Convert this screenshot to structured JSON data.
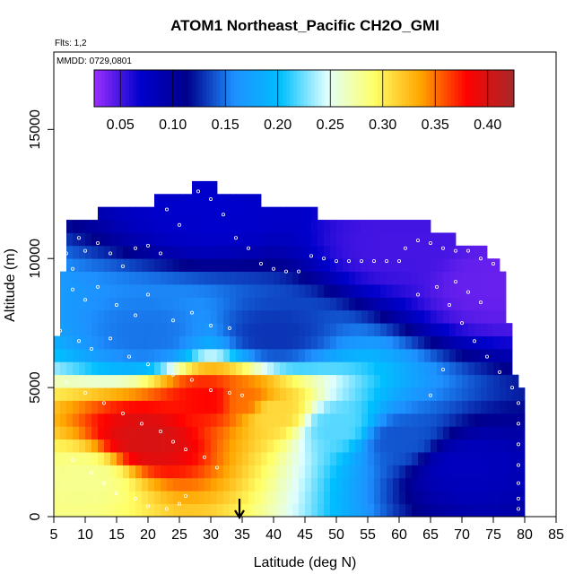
{
  "chart_data": {
    "type": "heatmap",
    "title": "ATOM1 Northeast_Pacific CH2O_GMI",
    "subtitle_flights": "Flts: 1,2",
    "subtitle_dates": "MMDD: 0729,0801",
    "xlabel": "Latitude (deg N)",
    "ylabel": "Altitude (m)",
    "xlim": [
      5,
      85
    ],
    "ylim": [
      0,
      18000
    ],
    "x_ticks": [
      5,
      10,
      15,
      20,
      25,
      30,
      35,
      40,
      45,
      50,
      55,
      60,
      65,
      70,
      75,
      80,
      85
    ],
    "y_ticks": [
      0,
      5000,
      10000,
      15000
    ],
    "x_tick_labels": [
      "5",
      "10",
      "15",
      "20",
      "25",
      "30",
      "35",
      "40",
      "45",
      "50",
      "55",
      "60",
      "65",
      "70",
      "75",
      "80",
      "85"
    ],
    "y_tick_labels": [
      "0",
      "5000",
      "10000",
      "15000"
    ],
    "colorbar": {
      "range": [
        0.025,
        0.425
      ],
      "ticks": [
        0.05,
        0.1,
        0.15,
        0.2,
        0.25,
        0.3,
        0.35,
        0.4
      ],
      "tick_labels": [
        "0.05",
        "0.10",
        "0.15",
        "0.20",
        "0.25",
        "0.30",
        "0.35",
        "0.40"
      ],
      "colors": [
        "#9b30ff",
        "#0000cd",
        "#00008b",
        "#1e90ff",
        "#00bfff",
        "#e0ffff",
        "#ffff66",
        "#ffa500",
        "#ff0000",
        "#a52a2a"
      ]
    },
    "grid_resolution": {
      "lat_step": 1,
      "alt_step": 500
    },
    "columns": [
      {
        "lat": 5.5,
        "top": 7000
      },
      {
        "lat": 6.5,
        "top": 9500
      },
      {
        "lat": 7.5,
        "top": 11500
      },
      {
        "lat": 12.5,
        "top": 12000
      },
      {
        "lat": 21.5,
        "top": 12500
      },
      {
        "lat": 27.5,
        "top": 13000
      },
      {
        "lat": 31.5,
        "top": 12500
      },
      {
        "lat": 38.5,
        "top": 12000
      },
      {
        "lat": 47.5,
        "top": 11500
      },
      {
        "lat": 65.5,
        "top": 11000
      },
      {
        "lat": 69.5,
        "top": 10500
      },
      {
        "lat": 74.5,
        "top": 10000
      },
      {
        "lat": 76.5,
        "top": 9500
      },
      {
        "lat": 77.5,
        "top": 7500
      },
      {
        "lat": 78.5,
        "top": 5500
      },
      {
        "lat": 79.5,
        "top": 5000
      }
    ],
    "field_anchors": [
      {
        "lat": 20,
        "alt": 3000,
        "value": 0.4
      },
      {
        "lat": 30,
        "alt": 4500,
        "value": 0.38
      },
      {
        "lat": 35,
        "alt": 4500,
        "value": 0.35
      },
      {
        "lat": 40,
        "alt": 4000,
        "value": 0.31
      },
      {
        "lat": 50,
        "alt": 3500,
        "value": 0.22
      },
      {
        "lat": 60,
        "alt": 3000,
        "value": 0.14
      },
      {
        "lat": 70,
        "alt": 2000,
        "value": 0.08
      },
      {
        "lat": 10,
        "alt": 1500,
        "value": 0.28
      },
      {
        "lat": 20,
        "alt": 7000,
        "value": 0.15
      },
      {
        "lat": 40,
        "alt": 7000,
        "value": 0.13
      },
      {
        "lat": 30,
        "alt": 12000,
        "value": 0.07
      },
      {
        "lat": 60,
        "alt": 10500,
        "value": 0.05
      },
      {
        "lat": 75,
        "alt": 9000,
        "value": 0.04
      }
    ],
    "observations": [
      [
        7,
        10200
      ],
      [
        8,
        9600
      ],
      [
        9,
        10800
      ],
      [
        10,
        10300
      ],
      [
        12,
        10600
      ],
      [
        14,
        10200
      ],
      [
        16,
        9700
      ],
      [
        18,
        10400
      ],
      [
        20,
        10500
      ],
      [
        22,
        10200
      ],
      [
        23,
        11900
      ],
      [
        25,
        11300
      ],
      [
        26,
        12600
      ],
      [
        28,
        12600
      ],
      [
        30,
        12300
      ],
      [
        32,
        11700
      ],
      [
        34,
        10800
      ],
      [
        36,
        10400
      ],
      [
        38,
        9800
      ],
      [
        40,
        9600
      ],
      [
        42,
        9500
      ],
      [
        44,
        9500
      ],
      [
        46,
        10100
      ],
      [
        48,
        10000
      ],
      [
        50,
        9900
      ],
      [
        52,
        9900
      ],
      [
        54,
        9900
      ],
      [
        56,
        9900
      ],
      [
        58,
        9900
      ],
      [
        60,
        9900
      ],
      [
        61,
        10400
      ],
      [
        63,
        10700
      ],
      [
        65,
        10600
      ],
      [
        67,
        10400
      ],
      [
        69,
        10300
      ],
      [
        71,
        10300
      ],
      [
        73,
        10000
      ],
      [
        75,
        9800
      ],
      [
        77,
        9700
      ],
      [
        78,
        9400
      ],
      [
        8,
        8800
      ],
      [
        10,
        8400
      ],
      [
        12,
        8900
      ],
      [
        15,
        8200
      ],
      [
        18,
        7800
      ],
      [
        20,
        8600
      ],
      [
        24,
        7600
      ],
      [
        27,
        7900
      ],
      [
        30,
        7400
      ],
      [
        33,
        7300
      ],
      [
        6,
        7200
      ],
      [
        9,
        6800
      ],
      [
        11,
        6500
      ],
      [
        14,
        6900
      ],
      [
        17,
        6200
      ],
      [
        20,
        5900
      ],
      [
        24,
        5500
      ],
      [
        27,
        5300
      ],
      [
        30,
        4900
      ],
      [
        33,
        4800
      ],
      [
        35,
        4700
      ],
      [
        7,
        5200
      ],
      [
        10,
        4800
      ],
      [
        13,
        4400
      ],
      [
        16,
        4000
      ],
      [
        19,
        3600
      ],
      [
        22,
        3300
      ],
      [
        24,
        2900
      ],
      [
        26,
        2600
      ],
      [
        29,
        2300
      ],
      [
        31,
        1900
      ],
      [
        8,
        2200
      ],
      [
        11,
        1700
      ],
      [
        13,
        1300
      ],
      [
        15,
        900
      ],
      [
        18,
        700
      ],
      [
        20,
        400
      ],
      [
        23,
        300
      ],
      [
        25,
        500
      ],
      [
        26,
        800
      ],
      [
        66,
        8900
      ],
      [
        68,
        8200
      ],
      [
        70,
        7500
      ],
      [
        72,
        6800
      ],
      [
        74,
        6200
      ],
      [
        76,
        5600
      ],
      [
        78,
        5000
      ],
      [
        79,
        4400
      ],
      [
        79,
        3600
      ],
      [
        79,
        2800
      ],
      [
        79,
        2000
      ],
      [
        79,
        1300
      ],
      [
        79,
        700
      ],
      [
        79,
        300
      ],
      [
        67,
        5700
      ],
      [
        65,
        4700
      ],
      [
        63,
        8600
      ],
      [
        69,
        9100
      ],
      [
        71,
        8700
      ],
      [
        73,
        8300
      ]
    ],
    "legend": "colorbar top (inside plot)"
  }
}
